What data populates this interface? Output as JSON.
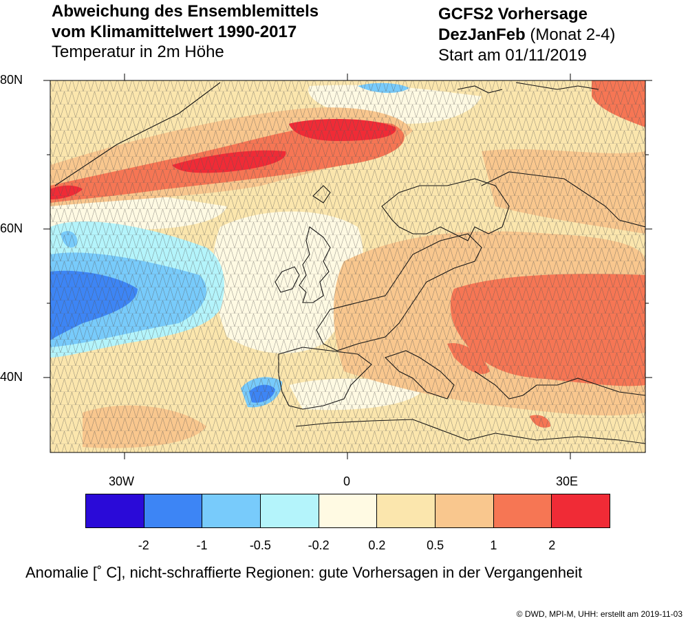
{
  "title_left": {
    "line1": "Abweichung des Ensemblemittels",
    "line2": "vom Klimamittelwert 1990-2017",
    "line3": "Temperatur in 2m Höhe"
  },
  "title_right": {
    "line1": "GCFS2 Vorhersage",
    "season": "DezJanFeb",
    "months": " (Monat 2-4)",
    "line3": "Start am 01/11/2019"
  },
  "axes": {
    "lat_labels": [
      "80N",
      "60N",
      "40N"
    ],
    "lon_labels": [
      "30W",
      "0",
      "30E"
    ]
  },
  "colorbar": {
    "colors": [
      "#2a0ad8",
      "#3d85f5",
      "#78cbfb",
      "#b4f4fb",
      "#fffae3",
      "#fbe6ad",
      "#f9c78e",
      "#f67654",
      "#f02b36"
    ],
    "labels": [
      "-2",
      "-1",
      "-0.5",
      "-0.2",
      "0.2",
      "0.5",
      "1",
      "2"
    ]
  },
  "caption": "Anomalie [˚ C], nicht-schraffierte Regionen: gute Vorhersagen in der Vergangenheit",
  "credit": "© DWD, MPI-M, UHH: erstellt am 2019-11-03"
}
